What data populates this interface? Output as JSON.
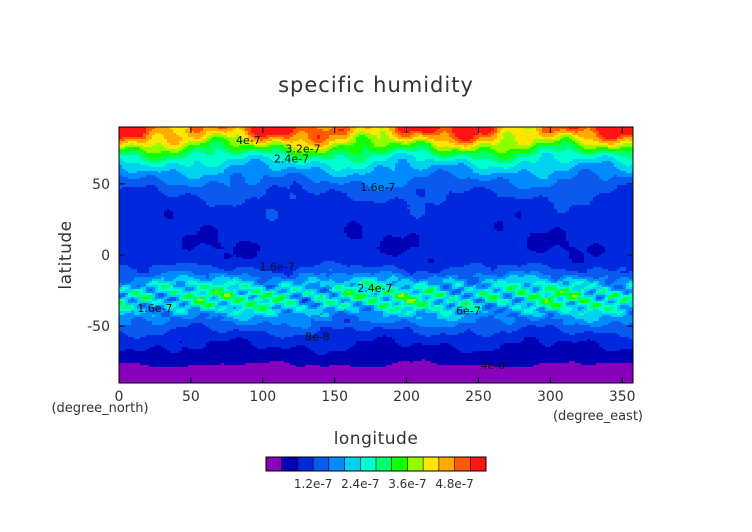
{
  "chart_data": {
    "type": "heatmap",
    "title": "specific humidity",
    "xlabel": "longitude",
    "ylabel": "latitude",
    "x_units": "(degree_east)",
    "y_units": "(degree_north)",
    "xlim": [
      0,
      357.5
    ],
    "ylim": [
      -90,
      90
    ],
    "xticks": [
      0,
      50,
      100,
      150,
      200,
      250,
      300,
      350
    ],
    "yticks": [
      -50,
      0,
      50
    ],
    "colorbar": {
      "levels": [
        0,
        4e-08,
        8e-08,
        1.2e-07,
        1.6e-07,
        2e-07,
        2.4e-07,
        2.8e-07,
        3.2e-07,
        3.6e-07,
        4e-07,
        4.4e-07,
        4.8e-07,
        5.2e-07
      ],
      "colors": [
        "#8800bb",
        "#0000b4",
        "#0028dc",
        "#0a5af0",
        "#008cff",
        "#00d2f0",
        "#00ffd0",
        "#00ff6e",
        "#14ff00",
        "#90ff00",
        "#ffe600",
        "#ffaa00",
        "#ff5a00",
        "#ff1414"
      ],
      "tick_labels": [
        "1.2e-7",
        "2.4e-7",
        "3.6e-7",
        "4.8e-7"
      ],
      "tick_values": [
        1.2e-07,
        2.4e-07,
        3.6e-07,
        4.8e-07
      ]
    },
    "contour_labels": [
      {
        "text": "4e-7",
        "lon": 90,
        "lat": 78
      },
      {
        "text": "3.2e-7",
        "lon": 128,
        "lat": 72
      },
      {
        "text": "2.4e-7",
        "lon": 120,
        "lat": 65
      },
      {
        "text": "1.6e-7",
        "lon": 180,
        "lat": 45
      },
      {
        "text": "1.6e-7",
        "lon": 110,
        "lat": -11
      },
      {
        "text": "2.4e-7",
        "lon": 178,
        "lat": -26
      },
      {
        "text": "1.6e-7",
        "lon": 25,
        "lat": -40
      },
      {
        "text": "6e-7",
        "lon": 243,
        "lat": -42
      },
      {
        "text": "8e-8",
        "lon": 138,
        "lat": -60
      },
      {
        "text": "4e-8",
        "lon": 260,
        "lat": -80
      }
    ],
    "zonal_mean_profile": [
      {
        "lat": 88,
        "value": 5e-07
      },
      {
        "lat": 82,
        "value": 4.4e-07
      },
      {
        "lat": 76,
        "value": 3.6e-07
      },
      {
        "lat": 70,
        "value": 2.8e-07
      },
      {
        "lat": 63,
        "value": 2.2e-07
      },
      {
        "lat": 55,
        "value": 1.7e-07
      },
      {
        "lat": 45,
        "value": 1.3e-07
      },
      {
        "lat": 35,
        "value": 1.05e-07
      },
      {
        "lat": 25,
        "value": 1e-07
      },
      {
        "lat": 15,
        "value": 9e-08
      },
      {
        "lat": 5,
        "value": 8.5e-08
      },
      {
        "lat": -5,
        "value": 1e-07
      },
      {
        "lat": -12,
        "value": 1.4e-07
      },
      {
        "lat": -20,
        "value": 2.2e-07
      },
      {
        "lat": -28,
        "value": 2.6e-07
      },
      {
        "lat": -36,
        "value": 2.4e-07
      },
      {
        "lat": -44,
        "value": 1.8e-07
      },
      {
        "lat": -52,
        "value": 1.3e-07
      },
      {
        "lat": -60,
        "value": 9e-08
      },
      {
        "lat": -70,
        "value": 6.5e-08
      },
      {
        "lat": -80,
        "value": 3e-08
      },
      {
        "lat": -90,
        "value": 2e-08
      }
    ],
    "grid": false
  }
}
